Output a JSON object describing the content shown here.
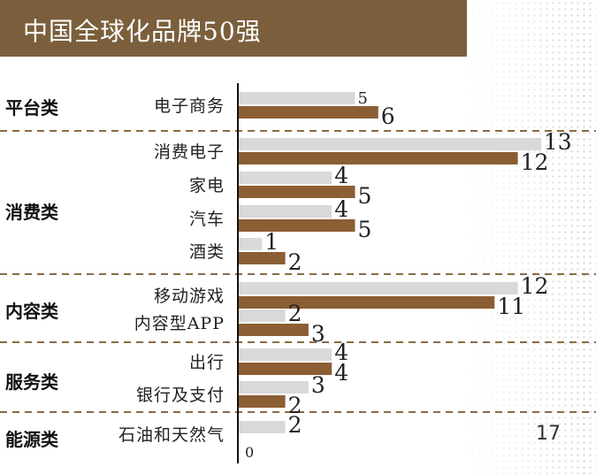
{
  "chart_data": {
    "type": "bar",
    "orientation": "horizontal",
    "title": "中国全球化品牌50强",
    "groups": [
      {
        "name": "平台类",
        "categories": [
          "电子商务"
        ]
      },
      {
        "name": "消费类",
        "categories": [
          "消费电子",
          "家电",
          "汽车",
          "酒类"
        ]
      },
      {
        "name": "内容类",
        "categories": [
          "移动游戏",
          "内容型APP"
        ]
      },
      {
        "name": "服务类",
        "categories": [
          "出行",
          "银行及支付"
        ]
      },
      {
        "name": "能源类",
        "categories": [
          "石油和天然气"
        ]
      }
    ],
    "categories": [
      "电子商务",
      "消费电子",
      "家电",
      "汽车",
      "酒类",
      "移动游戏",
      "内容型APP",
      "出行",
      "银行及支付",
      "石油和天然气"
    ],
    "series": [
      {
        "color": "#d9d9d9",
        "values": [
          5,
          13,
          4,
          4,
          1,
          12,
          2,
          4,
          3,
          2
        ]
      },
      {
        "color": "#8b5e34",
        "values": [
          6,
          12,
          5,
          5,
          2,
          11,
          3,
          4,
          2,
          0
        ]
      }
    ],
    "annotation": "17",
    "grid": false,
    "legend": "none"
  },
  "colors": {
    "banner": "#7b5f3c",
    "divider": "#8b6a45"
  }
}
